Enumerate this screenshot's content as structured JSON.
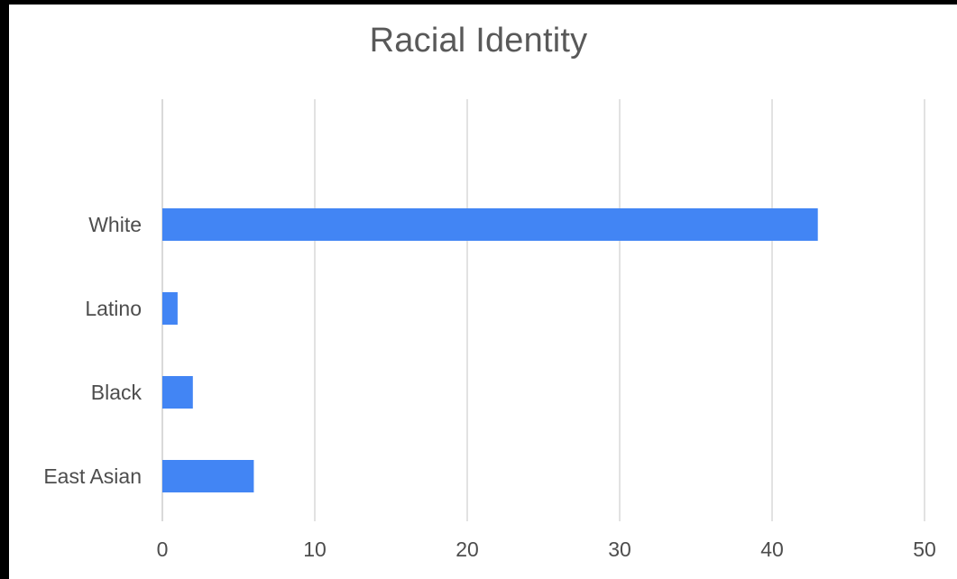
{
  "chart_data": {
    "type": "bar",
    "orientation": "horizontal",
    "title": "Racial Identity",
    "xlabel": "",
    "ylabel": "",
    "categories": [
      "White",
      "Latino",
      "Black",
      "East Asian"
    ],
    "values": [
      43,
      1,
      2,
      6
    ],
    "xlim": [
      0,
      50
    ],
    "xticks": [
      0,
      10,
      20,
      30,
      40,
      50
    ],
    "grid": "vertical",
    "legend": "none",
    "bar_color": "#4285f4",
    "grid_color": "#d9d9d9"
  }
}
